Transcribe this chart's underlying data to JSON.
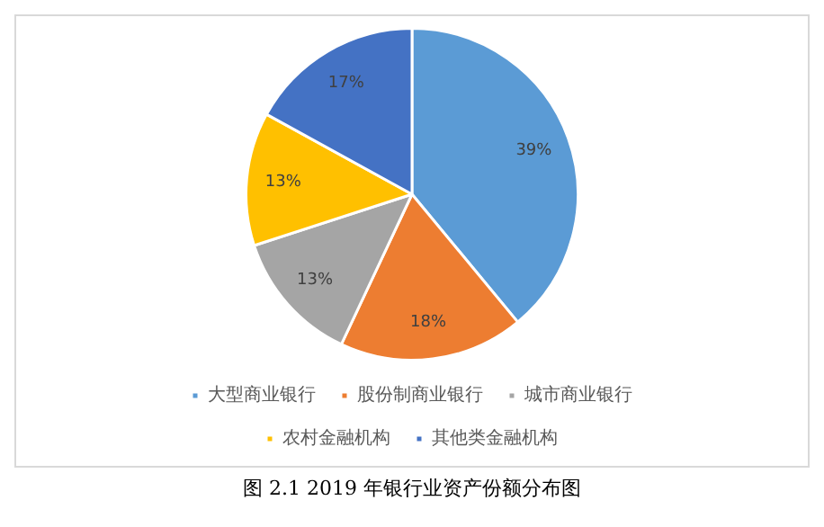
{
  "chart_data": {
    "type": "pie",
    "categories": [
      "大型商业银行",
      "股份制商业银行",
      "城市商业银行",
      "农村金融机构",
      "其他类金融机构"
    ],
    "values": [
      39,
      18,
      13,
      13,
      17
    ],
    "colors": [
      "#5b9bd5",
      "#ed7d31",
      "#a5a5a5",
      "#ffc000",
      "#4472c4"
    ],
    "value_labels": [
      "39%",
      "18%",
      "13%",
      "13%",
      "17%"
    ],
    "legend": "bottom",
    "annotations": [
      "图 2.1 2019 年银行业资产份额分布图"
    ]
  }
}
